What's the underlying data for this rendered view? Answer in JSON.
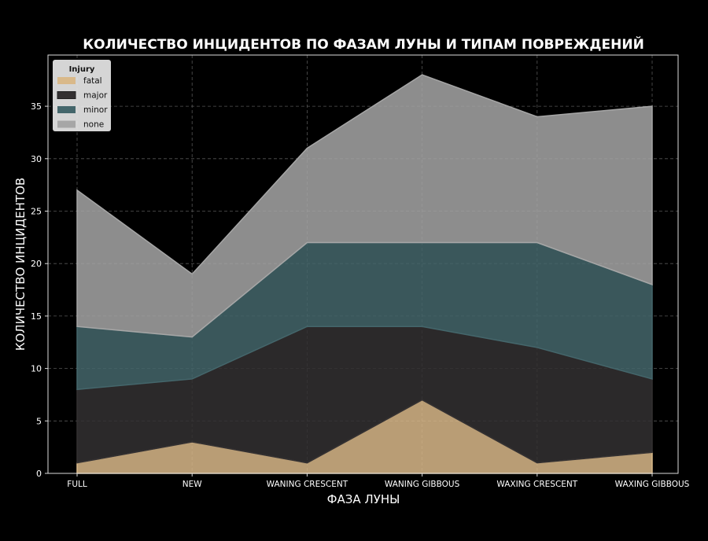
{
  "chart_data": {
    "type": "area",
    "stacked": true,
    "title": "КОЛИЧЕСТВО ИНЦИДЕНТОВ ПО ФАЗАМ ЛУНЫ И ТИПАМ ПОВРЕЖДЕНИЙ",
    "xlabel": "ФАЗА ЛУНЫ",
    "ylabel": "КОЛИЧЕСТВО ИНЦИДЕНТОВ",
    "categories": [
      "FULL",
      "NEW",
      "WANING CRESCENT",
      "WANING GIBBOUS",
      "WAXING CRESCENT",
      "WAXING GIBBOUS"
    ],
    "ylim": [
      0,
      39
    ],
    "yticks": [
      0,
      5,
      10,
      15,
      20,
      25,
      30,
      35
    ],
    "grid": true,
    "legend": {
      "title": "Injury",
      "placement": "top-left"
    },
    "series": [
      {
        "name": "fatal",
        "color": "#d9b98a",
        "values": [
          1,
          3,
          1,
          7,
          1,
          2
        ]
      },
      {
        "name": "major",
        "color": "#333031",
        "values": [
          7,
          6,
          13,
          7,
          11,
          7
        ]
      },
      {
        "name": "minor",
        "color": "#44666b",
        "values": [
          6,
          4,
          8,
          8,
          10,
          9
        ]
      },
      {
        "name": "none",
        "color": "#a6a6a6",
        "values": [
          13,
          6,
          9,
          16,
          12,
          17
        ]
      }
    ]
  }
}
